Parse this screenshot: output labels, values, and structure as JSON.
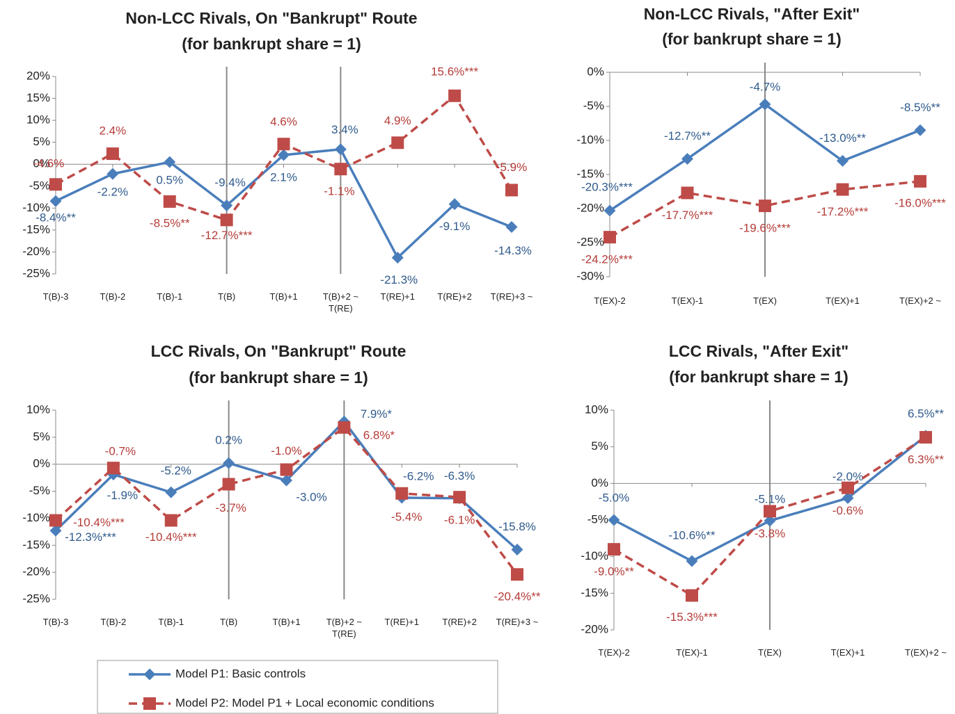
{
  "chart_data": [
    {
      "type": "line",
      "title": "Non-LCC Rivals, On \"Bankrupt\" Route",
      "subtitle": "(for bankrupt share = 1)",
      "categories": [
        "T(B)-3",
        "T(B)-2",
        "T(B)-1",
        "T(B)",
        "T(B)+1",
        "T(B)+2 ~\nT(RE)",
        "T(RE)+1",
        "T(RE)+2",
        "T(RE)+3 ~"
      ],
      "vlines": [
        "T(B)",
        "T(B)+2 ~\nT(RE)"
      ],
      "ylim": [
        -25,
        20
      ],
      "yticks": [
        {
          "value": 20,
          "label": "20%"
        },
        {
          "value": 15,
          "label": "15%"
        },
        {
          "value": 10,
          "label": "10%"
        },
        {
          "value": 5,
          "label": "5%"
        },
        {
          "value": 0,
          "label": "0%"
        },
        {
          "value": -5,
          "label": "-5%"
        },
        {
          "value": -10,
          "label": "-10%"
        },
        {
          "value": -15,
          "label": "-15%"
        },
        {
          "value": -20,
          "label": "-20%"
        },
        {
          "value": -25,
          "label": "-25%"
        }
      ],
      "series": [
        {
          "name": "Model P1: Basic controls",
          "color": "#4a7ebb",
          "values": [
            -8.4,
            -2.2,
            0.5,
            -9.4,
            2.1,
            3.4,
            -21.3,
            -9.1,
            -14.3
          ],
          "value_labels": [
            "-8.4%**",
            "-2.2%",
            "0.5%",
            "-9.4%",
            "2.1%",
            "3.4%",
            "-21.3%",
            "-9.1%",
            "-14.3%"
          ]
        },
        {
          "name": "Model P2: Model P1 + Local economic conditions",
          "color": "#be4b48",
          "values": [
            -4.6,
            2.4,
            -8.5,
            -12.7,
            4.6,
            -1.1,
            4.9,
            15.6,
            -5.9
          ],
          "value_labels": [
            "-4.6%",
            "2.4%",
            "-8.5%**",
            "-12.7%***",
            "4.6%",
            "-1.1%",
            "4.9%",
            "15.6%***",
            "-5.9%"
          ]
        }
      ]
    },
    {
      "type": "line",
      "title": "Non-LCC Rivals, \"After Exit\"",
      "subtitle": "(for bankrupt share = 1)",
      "categories": [
        "T(EX)-2",
        "T(EX)-1",
        "T(EX)",
        "T(EX)+1",
        "T(EX)+2 ~"
      ],
      "vlines": [
        "T(EX)"
      ],
      "ylim": [
        -30,
        0
      ],
      "yticks": [
        {
          "value": 0,
          "label": "0%"
        },
        {
          "value": -5,
          "label": "-5%"
        },
        {
          "value": -10,
          "label": "-10%"
        },
        {
          "value": -15,
          "label": "-15%"
        },
        {
          "value": -20,
          "label": "-20%"
        },
        {
          "value": -25,
          "label": "-25%"
        },
        {
          "value": -30,
          "label": "-30%"
        }
      ],
      "series": [
        {
          "color": "#4a7ebb",
          "values": [
            -20.3,
            -12.7,
            -4.7,
            -13.0,
            -8.5
          ],
          "value_labels": [
            "-20.3%***",
            "-12.7%**",
            "-4.7%",
            "-13.0%**",
            "-8.5%**"
          ]
        },
        {
          "color": "#be4b48",
          "values": [
            -24.2,
            -17.7,
            -19.6,
            -17.2,
            -16.0
          ],
          "value_labels": [
            "-24.2%***",
            "-17.7%***",
            "-19.6%***",
            "-17.2%***",
            "-16.0%***"
          ]
        }
      ]
    },
    {
      "type": "line",
      "title": "LCC Rivals, On \"Bankrupt\" Route",
      "subtitle": "(for bankrupt share = 1)",
      "categories": [
        "T(B)-3",
        "T(B)-2",
        "T(B)-1",
        "T(B)",
        "T(B)+1",
        "T(B)+2 ~\nT(RE)",
        "T(RE)+1",
        "T(RE)+2",
        "T(RE)+3 ~"
      ],
      "vlines": [
        "T(B)",
        "T(B)+2 ~\nT(RE)"
      ],
      "ylim": [
        -25,
        10
      ],
      "yticks": [
        {
          "value": 10,
          "label": "10%"
        },
        {
          "value": 5,
          "label": "5%"
        },
        {
          "value": 0,
          "label": "0%"
        },
        {
          "value": -5,
          "label": "-5%"
        },
        {
          "value": -10,
          "label": "-10%"
        },
        {
          "value": -15,
          "label": "-15%"
        },
        {
          "value": -20,
          "label": "-20%"
        },
        {
          "value": -25,
          "label": "-25%"
        }
      ],
      "series": [
        {
          "color": "#4a7ebb",
          "values": [
            -12.3,
            -1.9,
            -5.2,
            0.2,
            -3.0,
            7.9,
            -6.2,
            -6.3,
            -15.8
          ],
          "value_labels": [
            "-12.3%***",
            "-1.9%",
            "-5.2%",
            "0.2%",
            "-3.0%",
            "7.9%*",
            "-6.2%",
            "-6.3%",
            "-15.8%"
          ]
        },
        {
          "color": "#be4b48",
          "values": [
            -10.4,
            -0.7,
            -10.4,
            -3.7,
            -1.0,
            6.8,
            -5.4,
            -6.1,
            -20.4
          ],
          "value_labels": [
            "-10.4%***",
            "-0.7%",
            "-10.4%***",
            "-3.7%",
            "-1.0%",
            "6.8%*",
            "-5.4%",
            "-6.1%",
            "-20.4%**"
          ]
        }
      ]
    },
    {
      "type": "line",
      "title": "LCC Rivals, \"After Exit\"",
      "subtitle": "(for bankrupt share = 1)",
      "categories": [
        "T(EX)-2",
        "T(EX)-1",
        "T(EX)",
        "T(EX)+1",
        "T(EX)+2 ~"
      ],
      "vlines": [
        "T(EX)"
      ],
      "ylim": [
        -20,
        10
      ],
      "yticks": [
        {
          "value": 10,
          "label": "10%"
        },
        {
          "value": 5,
          "label": "5%"
        },
        {
          "value": 0,
          "label": "0%"
        },
        {
          "value": -5,
          "label": "-5%"
        },
        {
          "value": -10,
          "label": "-10%"
        },
        {
          "value": -15,
          "label": "-15%"
        },
        {
          "value": -20,
          "label": "-20%"
        }
      ],
      "series": [
        {
          "color": "#4a7ebb",
          "values": [
            -5.0,
            -10.6,
            -5.1,
            -2.0,
            6.5
          ],
          "value_labels": [
            "-5.0%",
            "-10.6%**",
            "-5.1%",
            "-2.0%",
            "6.5%**"
          ]
        },
        {
          "color": "#be4b48",
          "values": [
            -9.0,
            -15.3,
            -3.8,
            -0.6,
            6.3
          ],
          "value_labels": [
            "-9.0%**",
            "-15.3%***",
            "-3.8%",
            "-0.6%",
            "6.3%**"
          ]
        }
      ]
    }
  ]
}
